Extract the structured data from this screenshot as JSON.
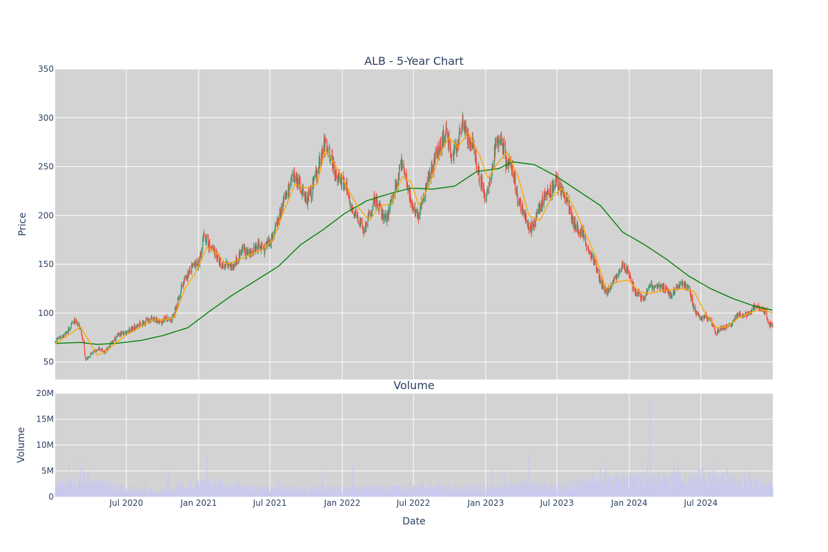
{
  "chart_data": [
    {
      "type": "candlestick",
      "title": "ALB - 5-Year Chart",
      "ylabel": "Price",
      "xlabel": "",
      "ylim": [
        32,
        350
      ],
      "yticks": [
        50,
        100,
        150,
        200,
        250,
        300,
        350
      ],
      "x_start": "2020-01-02",
      "x_end": "2024-12-31",
      "grid": true,
      "colors": {
        "increasing": "#3d9970",
        "decreasing": "#ff4136",
        "ma_short": "#ffa500",
        "ma_long": "#008000",
        "plot_bg": "#d3d3d3",
        "grid": "#ffffff"
      },
      "weekly_close": [
        [
          "2020-01-03",
          72
        ],
        [
          "2020-01-31",
          80
        ],
        [
          "2020-02-21",
          92
        ],
        [
          "2020-03-06",
          85
        ],
        [
          "2020-03-13",
          70
        ],
        [
          "2020-03-20",
          52
        ],
        [
          "2020-04-03",
          58
        ],
        [
          "2020-04-24",
          64
        ],
        [
          "2020-05-08",
          60
        ],
        [
          "2020-05-29",
          72
        ],
        [
          "2020-06-12",
          78
        ],
        [
          "2020-06-26",
          80
        ],
        [
          "2020-07-24",
          86
        ],
        [
          "2020-08-21",
          92
        ],
        [
          "2020-09-04",
          95
        ],
        [
          "2020-09-25",
          90
        ],
        [
          "2020-10-09",
          95
        ],
        [
          "2020-10-23",
          92
        ],
        [
          "2020-11-06",
          108
        ],
        [
          "2020-11-20",
          130
        ],
        [
          "2020-12-04",
          140
        ],
        [
          "2020-12-18",
          148
        ],
        [
          "2021-01-01",
          150
        ],
        [
          "2021-01-15",
          180
        ],
        [
          "2021-01-29",
          168
        ],
        [
          "2021-02-12",
          162
        ],
        [
          "2021-02-26",
          148
        ],
        [
          "2021-03-12",
          150
        ],
        [
          "2021-03-26",
          145
        ],
        [
          "2021-04-09",
          155
        ],
        [
          "2021-04-23",
          165
        ],
        [
          "2021-05-07",
          160
        ],
        [
          "2021-05-21",
          165
        ],
        [
          "2021-06-04",
          170
        ],
        [
          "2021-06-18",
          165
        ],
        [
          "2021-07-09",
          180
        ],
        [
          "2021-07-23",
          195
        ],
        [
          "2021-08-06",
          215
        ],
        [
          "2021-08-20",
          230
        ],
        [
          "2021-09-03",
          240
        ],
        [
          "2021-09-17",
          230
        ],
        [
          "2021-10-01",
          215
        ],
        [
          "2021-10-15",
          225
        ],
        [
          "2021-10-29",
          245
        ],
        [
          "2021-11-12",
          265
        ],
        [
          "2021-11-19",
          275
        ],
        [
          "2021-12-03",
          262
        ],
        [
          "2021-12-17",
          242
        ],
        [
          "2021-12-31",
          235
        ],
        [
          "2022-01-14",
          225
        ],
        [
          "2022-01-28",
          205
        ],
        [
          "2022-02-11",
          195
        ],
        [
          "2022-02-25",
          185
        ],
        [
          "2022-03-11",
          200
        ],
        [
          "2022-03-25",
          215
        ],
        [
          "2022-04-08",
          205
        ],
        [
          "2022-04-22",
          195
        ],
        [
          "2022-05-06",
          215
        ],
        [
          "2022-05-20",
          235
        ],
        [
          "2022-06-03",
          255
        ],
        [
          "2022-06-17",
          230
        ],
        [
          "2022-07-01",
          205
        ],
        [
          "2022-07-15",
          200
        ],
        [
          "2022-07-29",
          225
        ],
        [
          "2022-08-12",
          245
        ],
        [
          "2022-08-26",
          260
        ],
        [
          "2022-09-09",
          275
        ],
        [
          "2022-09-23",
          285
        ],
        [
          "2022-10-07",
          260
        ],
        [
          "2022-10-21",
          270
        ],
        [
          "2022-11-04",
          300
        ],
        [
          "2022-11-18",
          275
        ],
        [
          "2022-12-02",
          270
        ],
        [
          "2022-12-16",
          240
        ],
        [
          "2022-12-30",
          220
        ],
        [
          "2023-01-13",
          235
        ],
        [
          "2023-01-27",
          275
        ],
        [
          "2023-02-10",
          280
        ],
        [
          "2023-02-24",
          250
        ],
        [
          "2023-03-10",
          250
        ],
        [
          "2023-03-24",
          215
        ],
        [
          "2023-04-07",
          205
        ],
        [
          "2023-04-21",
          185
        ],
        [
          "2023-05-05",
          190
        ],
        [
          "2023-05-19",
          210
        ],
        [
          "2023-06-02",
          220
        ],
        [
          "2023-06-16",
          225
        ],
        [
          "2023-06-30",
          235
        ],
        [
          "2023-07-14",
          225
        ],
        [
          "2023-07-28",
          215
        ],
        [
          "2023-08-11",
          195
        ],
        [
          "2023-08-25",
          185
        ],
        [
          "2023-09-08",
          180
        ],
        [
          "2023-09-22",
          160
        ],
        [
          "2023-10-06",
          150
        ],
        [
          "2023-10-20",
          130
        ],
        [
          "2023-11-03",
          122
        ],
        [
          "2023-11-17",
          128
        ],
        [
          "2023-12-01",
          140
        ],
        [
          "2023-12-15",
          148
        ],
        [
          "2023-12-29",
          142
        ],
        [
          "2024-01-12",
          125
        ],
        [
          "2024-01-26",
          118
        ],
        [
          "2024-02-09",
          115
        ],
        [
          "2024-02-23",
          130
        ],
        [
          "2024-03-08",
          125
        ],
        [
          "2024-03-22",
          128
        ],
        [
          "2024-04-05",
          122
        ],
        [
          "2024-04-19",
          118
        ],
        [
          "2024-05-03",
          128
        ],
        [
          "2024-05-17",
          130
        ],
        [
          "2024-05-31",
          125
        ],
        [
          "2024-06-14",
          105
        ],
        [
          "2024-06-28",
          95
        ],
        [
          "2024-07-12",
          96
        ],
        [
          "2024-07-26",
          92
        ],
        [
          "2024-08-09",
          80
        ],
        [
          "2024-08-23",
          85
        ],
        [
          "2024-09-06",
          86
        ],
        [
          "2024-09-20",
          90
        ],
        [
          "2024-10-04",
          100
        ],
        [
          "2024-10-18",
          97
        ],
        [
          "2024-11-01",
          100
        ],
        [
          "2024-11-15",
          108
        ],
        [
          "2024-11-29",
          105
        ],
        [
          "2024-12-13",
          102
        ],
        [
          "2024-12-20",
          88
        ],
        [
          "2024-12-31",
          88
        ]
      ],
      "ma_short": [
        [
          "2020-01-03",
          69
        ],
        [
          "2020-02-14",
          80
        ],
        [
          "2020-03-06",
          86
        ],
        [
          "2020-03-27",
          72
        ],
        [
          "2020-04-17",
          57
        ],
        [
          "2020-05-08",
          60
        ],
        [
          "2020-06-05",
          70
        ],
        [
          "2020-07-03",
          78
        ],
        [
          "2020-08-07",
          86
        ],
        [
          "2020-09-04",
          93
        ],
        [
          "2020-10-02",
          93
        ],
        [
          "2020-10-30",
          95
        ],
        [
          "2020-11-27",
          125
        ],
        [
          "2020-12-25",
          142
        ],
        [
          "2021-01-22",
          168
        ],
        [
          "2021-02-19",
          160
        ],
        [
          "2021-03-12",
          150
        ],
        [
          "2021-04-09",
          154
        ],
        [
          "2021-05-07",
          159
        ],
        [
          "2021-06-11",
          165
        ],
        [
          "2021-07-09",
          175
        ],
        [
          "2021-08-06",
          205
        ],
        [
          "2021-09-03",
          232
        ],
        [
          "2021-10-01",
          228
        ],
        [
          "2021-10-29",
          232
        ],
        [
          "2021-11-19",
          267
        ],
        [
          "2021-12-17",
          250
        ],
        [
          "2022-01-14",
          228
        ],
        [
          "2022-02-11",
          208
        ],
        [
          "2022-03-11",
          195
        ],
        [
          "2022-04-08",
          210
        ],
        [
          "2022-05-06",
          212
        ],
        [
          "2022-06-03",
          240
        ],
        [
          "2022-06-24",
          235
        ],
        [
          "2022-07-15",
          210
        ],
        [
          "2022-08-12",
          232
        ],
        [
          "2022-09-09",
          265
        ],
        [
          "2022-09-30",
          280
        ],
        [
          "2022-10-21",
          270
        ],
        [
          "2022-11-18",
          285
        ],
        [
          "2022-12-16",
          262
        ],
        [
          "2023-01-06",
          238
        ],
        [
          "2023-02-03",
          255
        ],
        [
          "2023-02-24",
          265
        ],
        [
          "2023-03-24",
          240
        ],
        [
          "2023-04-21",
          200
        ],
        [
          "2023-05-19",
          195
        ],
        [
          "2023-06-16",
          218
        ],
        [
          "2023-07-14",
          228
        ],
        [
          "2023-08-11",
          210
        ],
        [
          "2023-09-08",
          185
        ],
        [
          "2023-10-06",
          160
        ],
        [
          "2023-11-03",
          125
        ],
        [
          "2023-12-01",
          132
        ],
        [
          "2023-12-29",
          134
        ],
        [
          "2024-01-26",
          122
        ],
        [
          "2024-02-23",
          120
        ],
        [
          "2024-03-22",
          123
        ],
        [
          "2024-04-19",
          124
        ],
        [
          "2024-05-17",
          125
        ],
        [
          "2024-06-14",
          122
        ],
        [
          "2024-07-12",
          100
        ],
        [
          "2024-08-09",
          85
        ],
        [
          "2024-09-06",
          86
        ],
        [
          "2024-10-04",
          95
        ],
        [
          "2024-11-01",
          100
        ],
        [
          "2024-11-29",
          104
        ],
        [
          "2024-12-31",
          100
        ]
      ],
      "ma_long": [
        [
          "2020-01-03",
          69
        ],
        [
          "2020-03-06",
          70
        ],
        [
          "2020-04-17",
          68
        ],
        [
          "2020-06-05",
          69
        ],
        [
          "2020-08-07",
          72
        ],
        [
          "2020-10-02",
          77
        ],
        [
          "2020-12-04",
          85
        ],
        [
          "2021-01-29",
          102
        ],
        [
          "2021-03-26",
          118
        ],
        [
          "2021-05-21",
          132
        ],
        [
          "2021-07-23",
          148
        ],
        [
          "2021-09-17",
          170
        ],
        [
          "2021-11-12",
          185
        ],
        [
          "2022-01-07",
          202
        ],
        [
          "2022-03-04",
          215
        ],
        [
          "2022-04-29",
          222
        ],
        [
          "2022-06-24",
          228
        ],
        [
          "2022-08-19",
          227
        ],
        [
          "2022-10-14",
          230
        ],
        [
          "2022-12-09",
          245
        ],
        [
          "2023-02-03",
          248
        ],
        [
          "2023-03-10",
          255
        ],
        [
          "2023-05-05",
          252
        ],
        [
          "2023-06-30",
          240
        ],
        [
          "2023-08-25",
          225
        ],
        [
          "2023-10-20",
          210
        ],
        [
          "2023-12-15",
          183
        ],
        [
          "2024-02-09",
          170
        ],
        [
          "2024-04-05",
          155
        ],
        [
          "2024-05-31",
          138
        ],
        [
          "2024-07-26",
          125
        ],
        [
          "2024-09-20",
          115
        ],
        [
          "2024-11-15",
          107
        ],
        [
          "2024-12-31",
          103
        ]
      ]
    },
    {
      "type": "bar",
      "title": "Volume",
      "ylabel": "Volume",
      "xlabel": "Date",
      "ylim": [
        0,
        20000000
      ],
      "yticks": [
        0,
        5000000,
        10000000,
        15000000,
        20000000
      ],
      "ytick_labels": [
        "0",
        "5M",
        "10M",
        "15M",
        "20M"
      ],
      "xticks": [
        "2020-07-01",
        "2021-01-01",
        "2021-07-01",
        "2022-01-01",
        "2022-07-01",
        "2023-01-01",
        "2023-07-01",
        "2024-01-01",
        "2024-07-01"
      ],
      "xtick_labels": [
        "Jul 2020",
        "Jan 2021",
        "Jul 2021",
        "Jan 2022",
        "Jul 2022",
        "Jan 2023",
        "Jul 2023",
        "Jan 2024",
        "Jul 2024"
      ],
      "color": "#c8c8f0",
      "volume_level_m": [
        [
          "2020-01-03",
          1.8
        ],
        [
          "2020-03-20",
          3.0
        ],
        [
          "2020-07-03",
          1.5
        ],
        [
          "2020-10-02",
          1.0
        ],
        [
          "2020-12-04",
          1.8
        ],
        [
          "2021-02-05",
          2.5
        ],
        [
          "2021-06-04",
          1.5
        ],
        [
          "2021-10-01",
          1.5
        ],
        [
          "2022-01-07",
          1.5
        ],
        [
          "2022-06-03",
          1.8
        ],
        [
          "2022-10-07",
          1.5
        ],
        [
          "2023-01-06",
          1.8
        ],
        [
          "2023-04-07",
          2.2
        ],
        [
          "2023-07-07",
          1.8
        ],
        [
          "2023-10-06",
          3.0
        ],
        [
          "2024-01-05",
          3.2
        ],
        [
          "2024-04-05",
          3.0
        ],
        [
          "2024-07-05",
          3.8
        ],
        [
          "2024-10-04",
          2.8
        ],
        [
          "2024-12-31",
          2.2
        ]
      ],
      "volume_spikes_m": [
        [
          "2020-03-13",
          5.5
        ],
        [
          "2020-03-27",
          5.0
        ],
        [
          "2020-10-16",
          5.0
        ],
        [
          "2021-01-22",
          8.0
        ],
        [
          "2021-11-12",
          5.0
        ],
        [
          "2022-01-28",
          6.2
        ],
        [
          "2023-02-17",
          5.0
        ],
        [
          "2023-04-21",
          8.5
        ],
        [
          "2023-10-20",
          5.5
        ],
        [
          "2023-11-03",
          7.0
        ],
        [
          "2024-02-16",
          6.5
        ],
        [
          "2024-02-23",
          19.5
        ],
        [
          "2024-05-03",
          6.0
        ],
        [
          "2024-08-02",
          6.5
        ],
        [
          "2024-09-06",
          5.8
        ]
      ]
    }
  ]
}
